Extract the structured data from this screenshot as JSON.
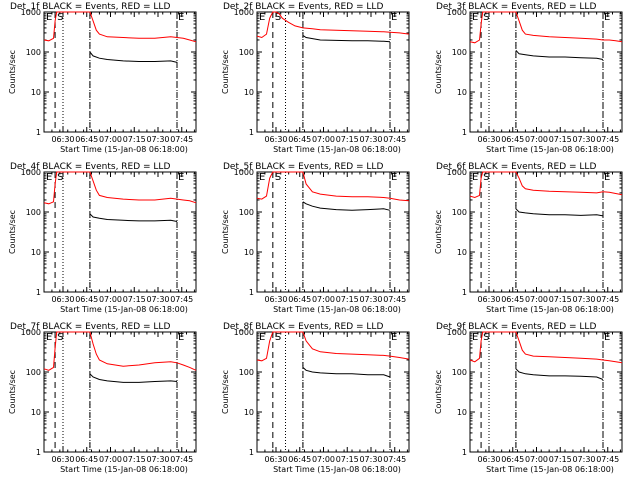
{
  "xlabel": "Start Time (15-Jan-08 06:18:00)",
  "ylabel": "Counts/sec",
  "x_tick_labels": [
    "06:30",
    "06:45",
    "07:00",
    "07:15",
    "07:30",
    "07:45"
  ],
  "y_tick_labels": [
    "1",
    "10",
    "100",
    "1000"
  ],
  "markers": {
    "s": "S",
    "e": "E"
  },
  "colors": {
    "events": "#000000",
    "lld": "#ff0000"
  },
  "chart_data": [
    {
      "type": "line",
      "title": "Det_1f BLACK = Events, RED = LLD",
      "x_unit": "minutes after 06:18:00",
      "xlim": [
        0,
        96
      ],
      "ylim": [
        1,
        1000
      ],
      "yscale": "log",
      "dashed_lines": [
        7,
        29,
        84
      ],
      "dotted_lines": [
        12,
        29,
        84
      ],
      "series": [
        {
          "name": "LLD",
          "color": "#ff0000",
          "x": [
            0,
            3,
            6,
            7,
            8,
            12,
            16,
            20,
            29,
            31,
            33,
            35,
            40,
            50,
            60,
            70,
            80,
            84,
            88,
            92,
            96
          ],
          "y": [
            200,
            190,
            220,
            600,
            1000,
            1000,
            1000,
            1000,
            1000,
            600,
            350,
            280,
            240,
            230,
            220,
            220,
            240,
            230,
            220,
            200,
            180
          ]
        },
        {
          "name": "Events",
          "color": "#000000",
          "x": [
            29,
            31,
            35,
            40,
            50,
            60,
            70,
            80,
            84
          ],
          "y": [
            100,
            80,
            70,
            65,
            60,
            58,
            58,
            60,
            55
          ]
        }
      ]
    },
    {
      "type": "line",
      "title": "Det_2f BLACK = Events, RED = LLD",
      "x_unit": "minutes after 06:18:00",
      "xlim": [
        0,
        96
      ],
      "ylim": [
        1,
        1000
      ],
      "yscale": "log",
      "dashed_lines": [
        10,
        29,
        84
      ],
      "dotted_lines": [
        18,
        29,
        84
      ],
      "series": [
        {
          "name": "LLD",
          "color": "#ff0000",
          "x": [
            0,
            3,
            6,
            8,
            10,
            12,
            14,
            16,
            20,
            24,
            29,
            35,
            40,
            50,
            60,
            70,
            80,
            84,
            90,
            96
          ],
          "y": [
            250,
            230,
            280,
            700,
            1000,
            1000,
            900,
            700,
            550,
            450,
            400,
            380,
            360,
            350,
            340,
            330,
            320,
            310,
            300,
            280
          ]
        },
        {
          "name": "Events",
          "color": "#000000",
          "x": [
            29,
            31,
            40,
            50,
            60,
            70,
            80,
            84
          ],
          "y": [
            260,
            230,
            200,
            195,
            190,
            190,
            185,
            180
          ]
        }
      ]
    },
    {
      "type": "line",
      "title": "Det_3f BLACK = Events, RED = LLD",
      "x_unit": "minutes after 06:18:00",
      "xlim": [
        0,
        96
      ],
      "ylim": [
        1,
        1000
      ],
      "yscale": "log",
      "dashed_lines": [
        7,
        29,
        84
      ],
      "dotted_lines": [
        12,
        29,
        84
      ],
      "series": [
        {
          "name": "LLD",
          "color": "#ff0000",
          "x": [
            0,
            3,
            6,
            7,
            8,
            12,
            20,
            29,
            31,
            33,
            35,
            40,
            50,
            60,
            70,
            80,
            84,
            88,
            92,
            96
          ],
          "y": [
            180,
            170,
            200,
            500,
            1000,
            1000,
            1000,
            1000,
            600,
            350,
            280,
            260,
            240,
            230,
            220,
            210,
            200,
            200,
            190,
            180
          ]
        },
        {
          "name": "Events",
          "color": "#000000",
          "x": [
            29,
            31,
            35,
            40,
            50,
            60,
            70,
            80,
            84
          ],
          "y": [
            110,
            90,
            85,
            80,
            75,
            75,
            72,
            70,
            65
          ]
        }
      ]
    },
    {
      "type": "line",
      "title": "Det_4f BLACK = Events, RED = LLD",
      "x_unit": "minutes after 06:18:00",
      "xlim": [
        0,
        96
      ],
      "ylim": [
        1,
        1000
      ],
      "yscale": "log",
      "dashed_lines": [
        7,
        29,
        84
      ],
      "dotted_lines": [
        12,
        29,
        84
      ],
      "series": [
        {
          "name": "LLD",
          "color": "#ff0000",
          "x": [
            0,
            3,
            6,
            7,
            8,
            12,
            20,
            29,
            31,
            33,
            35,
            40,
            50,
            60,
            70,
            80,
            84,
            88,
            92,
            96
          ],
          "y": [
            170,
            160,
            180,
            500,
            1000,
            1000,
            1000,
            1000,
            600,
            350,
            260,
            230,
            210,
            200,
            200,
            220,
            210,
            200,
            190,
            170
          ]
        },
        {
          "name": "Events",
          "color": "#000000",
          "x": [
            29,
            31,
            35,
            40,
            50,
            60,
            70,
            80,
            84
          ],
          "y": [
            90,
            75,
            70,
            65,
            62,
            60,
            60,
            62,
            58
          ]
        }
      ]
    },
    {
      "type": "line",
      "title": "Det_5f BLACK = Events, RED = LLD",
      "x_unit": "minutes after 06:18:00",
      "xlim": [
        0,
        96
      ],
      "ylim": [
        1,
        1000
      ],
      "yscale": "log",
      "dashed_lines": [
        10,
        29,
        84
      ],
      "dotted_lines": [
        18,
        29,
        84
      ],
      "series": [
        {
          "name": "LLD",
          "color": "#ff0000",
          "x": [
            0,
            3,
            6,
            8,
            10,
            12,
            14,
            16,
            20,
            24,
            29,
            31,
            35,
            40,
            50,
            60,
            70,
            80,
            84,
            90,
            96
          ],
          "y": [
            220,
            210,
            250,
            700,
            1000,
            1000,
            1000,
            1000,
            1000,
            1000,
            1000,
            500,
            320,
            280,
            250,
            240,
            240,
            230,
            220,
            200,
            190
          ]
        },
        {
          "name": "Events",
          "color": "#000000",
          "x": [
            29,
            31,
            35,
            40,
            50,
            60,
            70,
            80,
            84
          ],
          "y": [
            180,
            160,
            140,
            125,
            115,
            110,
            115,
            120,
            110
          ]
        }
      ]
    },
    {
      "type": "line",
      "title": "Det_6f BLACK = Events, RED = LLD",
      "x_unit": "minutes after 06:18:00",
      "xlim": [
        0,
        96
      ],
      "ylim": [
        1,
        1000
      ],
      "yscale": "log",
      "dashed_lines": [
        7,
        29,
        84
      ],
      "dotted_lines": [
        12,
        29,
        84
      ],
      "series": [
        {
          "name": "LLD",
          "color": "#ff0000",
          "x": [
            0,
            3,
            6,
            7,
            8,
            12,
            20,
            29,
            31,
            33,
            35,
            40,
            50,
            60,
            70,
            80,
            84,
            88,
            92,
            96
          ],
          "y": [
            250,
            230,
            260,
            700,
            1000,
            1000,
            1000,
            1000,
            700,
            450,
            380,
            350,
            330,
            320,
            310,
            300,
            320,
            310,
            290,
            270
          ]
        },
        {
          "name": "Events",
          "color": "#000000",
          "x": [
            29,
            31,
            35,
            40,
            50,
            60,
            70,
            80,
            84
          ],
          "y": [
            120,
            100,
            95,
            90,
            85,
            85,
            82,
            85,
            80
          ]
        }
      ]
    },
    {
      "type": "line",
      "title": "Det_7f BLACK = Events, RED = LLD",
      "x_unit": "minutes after 06:18:00",
      "xlim": [
        0,
        96
      ],
      "ylim": [
        1,
        1000
      ],
      "yscale": "log",
      "dashed_lines": [
        7,
        29,
        84
      ],
      "dotted_lines": [
        12,
        29,
        84
      ],
      "series": [
        {
          "name": "LLD",
          "color": "#ff0000",
          "x": [
            0,
            3,
            6,
            7,
            8,
            12,
            20,
            29,
            31,
            33,
            35,
            40,
            50,
            60,
            70,
            80,
            84,
            88,
            92,
            96
          ],
          "y": [
            120,
            110,
            130,
            400,
            1000,
            1000,
            1000,
            1000,
            500,
            280,
            200,
            160,
            140,
            150,
            170,
            180,
            170,
            150,
            130,
            110
          ]
        },
        {
          "name": "Events",
          "color": "#000000",
          "x": [
            29,
            31,
            35,
            40,
            50,
            60,
            70,
            80,
            84
          ],
          "y": [
            90,
            75,
            65,
            60,
            55,
            55,
            58,
            60,
            58
          ]
        }
      ]
    },
    {
      "type": "line",
      "title": "Det_8f BLACK = Events, RED = LLD",
      "x_unit": "minutes after 06:18:00",
      "xlim": [
        0,
        96
      ],
      "ylim": [
        1,
        1000
      ],
      "yscale": "log",
      "dashed_lines": [
        10,
        29,
        84
      ],
      "dotted_lines": [
        18,
        29,
        84
      ],
      "series": [
        {
          "name": "LLD",
          "color": "#ff0000",
          "x": [
            0,
            3,
            6,
            8,
            10,
            12,
            14,
            16,
            20,
            24,
            29,
            31,
            35,
            40,
            50,
            60,
            70,
            80,
            84,
            90,
            96
          ],
          "y": [
            200,
            190,
            220,
            600,
            1000,
            1000,
            1000,
            1000,
            1000,
            1000,
            1000,
            600,
            380,
            320,
            290,
            280,
            270,
            260,
            250,
            230,
            210
          ]
        },
        {
          "name": "Events",
          "color": "#000000",
          "x": [
            29,
            31,
            35,
            40,
            50,
            60,
            70,
            80,
            84
          ],
          "y": [
            130,
            110,
            100,
            95,
            90,
            90,
            85,
            85,
            75
          ]
        }
      ]
    },
    {
      "type": "line",
      "title": "Det_9f BLACK = Events, RED = LLD",
      "x_unit": "minutes after 06:18:00",
      "xlim": [
        0,
        96
      ],
      "ylim": [
        1,
        1000
      ],
      "yscale": "log",
      "dashed_lines": [
        7,
        29,
        84
      ],
      "dotted_lines": [
        12,
        29,
        84
      ],
      "series": [
        {
          "name": "LLD",
          "color": "#ff0000",
          "x": [
            0,
            3,
            6,
            7,
            8,
            12,
            20,
            29,
            31,
            33,
            35,
            40,
            50,
            60,
            70,
            80,
            84,
            88,
            92,
            96
          ],
          "y": [
            200,
            180,
            220,
            600,
            1000,
            1000,
            1000,
            1000,
            600,
            350,
            280,
            250,
            240,
            230,
            220,
            210,
            200,
            190,
            180,
            170
          ]
        },
        {
          "name": "Events",
          "color": "#000000",
          "x": [
            29,
            31,
            35,
            40,
            50,
            60,
            70,
            80,
            84
          ],
          "y": [
            120,
            100,
            90,
            85,
            80,
            80,
            78,
            75,
            65
          ]
        }
      ]
    }
  ]
}
